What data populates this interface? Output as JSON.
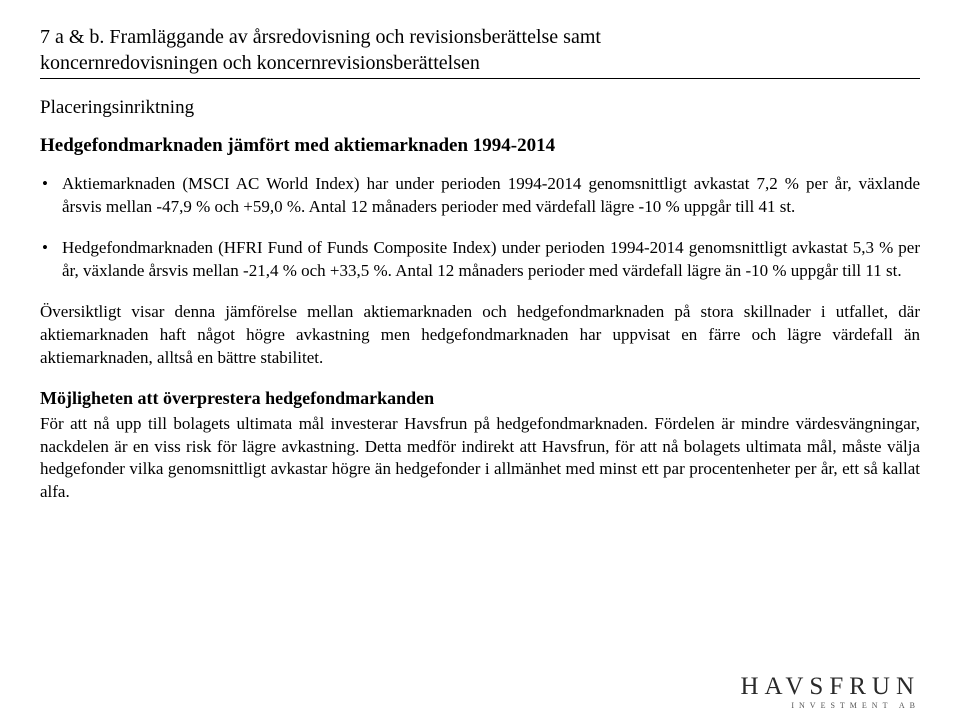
{
  "header": {
    "line1": "7 a & b. Framläggande av årsredovisning och revisionsberättelse samt",
    "line2": "koncernredovisningen och koncernrevisionsberättelsen"
  },
  "section_title": "Placeringsinriktning",
  "subheading": "Hedgefondmarknaden jämfört med aktiemarknaden 1994-2014",
  "bullets": [
    "Aktiemarknaden (MSCI AC World Index) har under perioden 1994-2014 genomsnittligt avkastat 7,2 % per år, växlande årsvis mellan -47,9 % och +59,0 %. Antal 12 månaders perioder med värdefall lägre -10 % uppgår till 41 st.",
    "Hedgefondmarknaden (HFRI Fund of Funds Composite Index) under perioden 1994-2014 genomsnittligt avkastat 5,3 % per år, växlande årsvis mellan -21,4 % och +33,5 %. Antal 12 månaders perioder med värdefall lägre än -10 % uppgår till 11 st."
  ],
  "paragraph1": "Översiktligt visar denna jämförelse mellan aktiemarknaden och hedgefondmarknaden på stora skillnader i utfallet, där aktiemarknaden haft något högre avkastning men hedgefondmarknaden har uppvisat en färre och lägre värdefall än aktiemarknaden, alltså en bättre stabilitet.",
  "subheading2": "Möjligheten att överprestera hedgefondmarkanden",
  "paragraph2": "För att nå upp till bolagets ultimata mål investerar Havsfrun på hedgefondmarknaden. Fördelen är mindre värdesvängningar, nackdelen är en viss risk för lägre avkastning. Detta medför indirekt att Havsfrun, för att nå bolagets ultimata mål, måste välja hedgefonder vilka genomsnittligt avkastar högre än hedgefonder i allmänhet med minst ett par procentenheter per år, ett så kallat alfa.",
  "logo": {
    "main": "HAVSFRUN",
    "sub": "INVESTMENT AB"
  }
}
